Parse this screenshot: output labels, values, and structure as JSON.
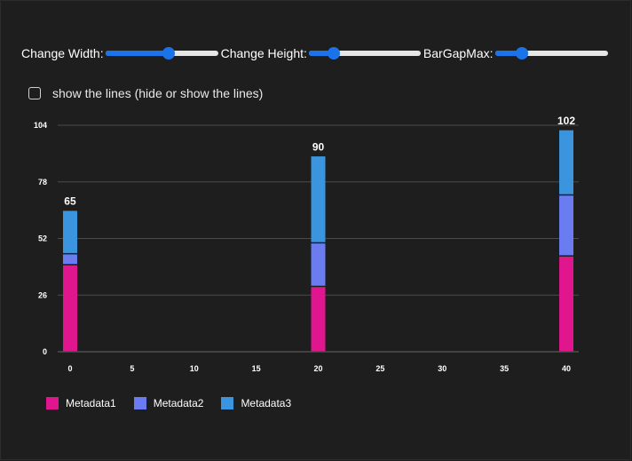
{
  "controls": {
    "width_label": "Change Width:",
    "height_label": "Change Height:",
    "bargap_label": "BarGapMax:",
    "width_value": 0.56,
    "height_value": 0.22,
    "bargap_value": 0.24
  },
  "lines_toggle": {
    "label": "show the lines (hide or show the lines)",
    "checked": false
  },
  "chart_data": {
    "type": "bar",
    "stacked": true,
    "x": [
      0,
      20,
      40
    ],
    "xlim": [
      -1,
      41
    ],
    "ylim": [
      0,
      104
    ],
    "xticks": [
      0,
      5,
      10,
      15,
      20,
      25,
      30,
      35,
      40
    ],
    "yticks": [
      0,
      26,
      52,
      78,
      104
    ],
    "grid": true,
    "legend": "bottom-left",
    "series": [
      {
        "name": "Metadata1",
        "color": "#e0168f",
        "values": [
          40,
          30,
          44
        ]
      },
      {
        "name": "Metadata2",
        "color": "#6b7cf0",
        "values": [
          5,
          20,
          28
        ]
      },
      {
        "name": "Metadata3",
        "color": "#3a95de",
        "values": [
          20,
          40,
          30
        ]
      }
    ],
    "totals": [
      65,
      90,
      102
    ]
  }
}
